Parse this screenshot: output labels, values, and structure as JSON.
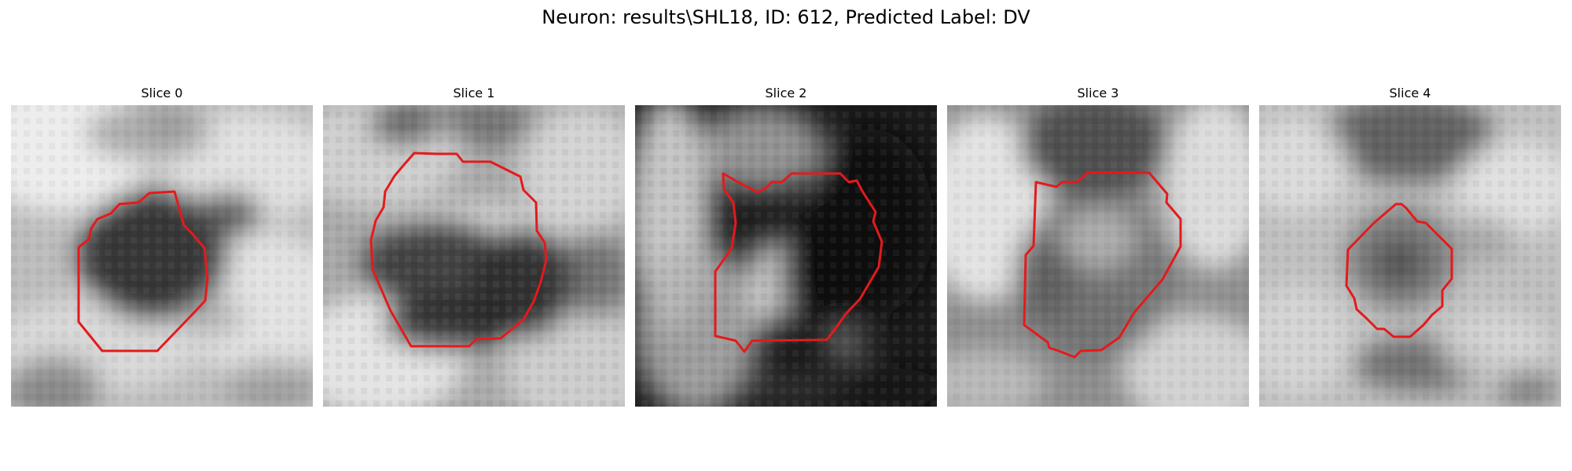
{
  "figure": {
    "suptitle": "Neuron: results\\SHL18, ID: 612, Predicted Label: DV"
  },
  "panels": [
    {
      "title": "Slice 0",
      "content": "grayscale-microscopy-patch-with-red-outline"
    },
    {
      "title": "Slice 1",
      "content": "grayscale-microscopy-patch-with-red-outline"
    },
    {
      "title": "Slice 2",
      "content": "grayscale-microscopy-patch-with-red-outline"
    },
    {
      "title": "Slice 3",
      "content": "grayscale-microscopy-patch-with-red-outline"
    },
    {
      "title": "Slice 4",
      "content": "grayscale-microscopy-patch-with-red-outline"
    }
  ],
  "colors": {
    "outline": "#e41a1c",
    "background": "#ffffff"
  }
}
